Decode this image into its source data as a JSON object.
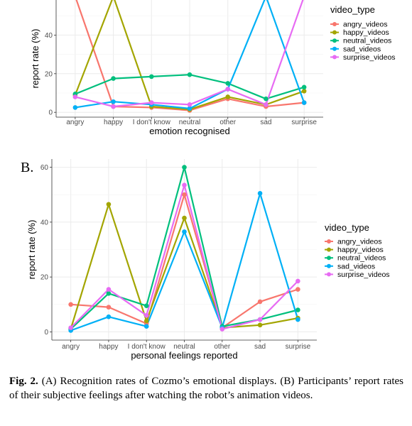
{
  "chart_data": [
    {
      "type": "line",
      "panel_label": "",
      "xlabel": "emotion recognised",
      "ylabel": "report rate (%)",
      "categories": [
        "angry",
        "happy",
        "I don't know",
        "neutral",
        "other",
        "sad",
        "surprise"
      ],
      "yticks": [
        0,
        20,
        40
      ],
      "ylim": [
        -2.5,
        60
      ],
      "grid": true,
      "legend_title": "video_type",
      "series": [
        {
          "name": "angry_videos",
          "color": "#F8766D",
          "values": [
            60,
            3,
            2.5,
            1,
            7,
            3,
            5
          ]
        },
        {
          "name": "happy_videos",
          "color": "#A3A500",
          "values": [
            9,
            60,
            3,
            1.5,
            8,
            4,
            11
          ]
        },
        {
          "name": "neutral_videos",
          "color": "#00BF7D",
          "values": [
            9.5,
            17.5,
            18.5,
            19.5,
            15,
            7,
            13
          ]
        },
        {
          "name": "sad_videos",
          "color": "#00B0F6",
          "values": [
            2.5,
            5.5,
            4,
            2,
            12,
            60,
            5
          ]
        },
        {
          "name": "surprise_videos",
          "color": "#E76BF3",
          "values": [
            8,
            3,
            5,
            4,
            12,
            4,
            60
          ]
        }
      ]
    },
    {
      "type": "line",
      "panel_label": "B.",
      "xlabel": "personal feelings reported",
      "ylabel": "report rate (%)",
      "categories": [
        "angry",
        "happy",
        "I don't know",
        "neutral",
        "other",
        "sad",
        "surprise"
      ],
      "yticks": [
        0,
        20,
        40,
        60
      ],
      "ylim": [
        -3,
        63
      ],
      "grid": true,
      "legend_title": "video_type",
      "series": [
        {
          "name": "angry_videos",
          "color": "#F8766D",
          "values": [
            10,
            9,
            3,
            50,
            1.5,
            11,
            15.5
          ]
        },
        {
          "name": "happy_videos",
          "color": "#A3A500",
          "values": [
            1,
            46.5,
            4,
            41.5,
            1.5,
            2.5,
            5
          ]
        },
        {
          "name": "neutral_videos",
          "color": "#00BF7D",
          "values": [
            1,
            14,
            9.5,
            60,
            2,
            4.5,
            8
          ]
        },
        {
          "name": "sad_videos",
          "color": "#00B0F6",
          "values": [
            0.5,
            5.5,
            2,
            36.5,
            1.5,
            50.5,
            4.5
          ]
        },
        {
          "name": "surprise_videos",
          "color": "#E76BF3",
          "values": [
            1.5,
            15.5,
            6,
            53.5,
            1,
            4.5,
            18.5
          ]
        }
      ]
    }
  ],
  "caption": {
    "label": "Fig. 2.",
    "text": "(A) Recognition rates of Cozmo’s emotional displays. (B) Participants’ report rates of their subjective feelings after watching the robot’s animation videos."
  }
}
